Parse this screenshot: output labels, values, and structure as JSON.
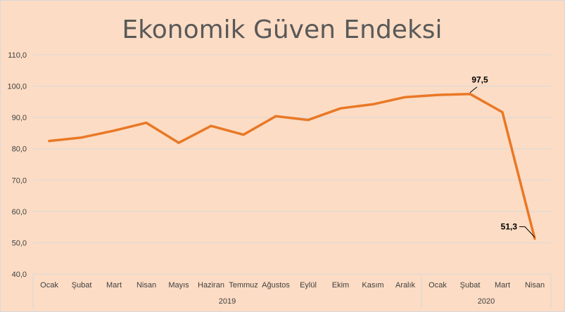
{
  "chart_data": {
    "type": "line",
    "title": "Ekonomik Güven Endeksi",
    "xlabel": "",
    "ylabel": "",
    "ylim": [
      40,
      110
    ],
    "yticks": [
      "40,0",
      "50,0",
      "60,0",
      "70,0",
      "80,0",
      "90,0",
      "100,0",
      "110,0"
    ],
    "grid": true,
    "line_color": "#e97826",
    "categories": [
      "Ocak",
      "Şubat",
      "Mart",
      "Nisan",
      "Mayıs",
      "Haziran",
      "Temmuz",
      "Ağustos",
      "Eylül",
      "Ekim",
      "Kasım",
      "Aralık",
      "Ocak",
      "Şubat",
      "Mart",
      "Nisan"
    ],
    "groups": [
      {
        "label": "2019",
        "count": 12
      },
      {
        "label": "2020",
        "count": 4
      }
    ],
    "series": [
      {
        "values": [
          82.5,
          83.6,
          85.8,
          88.3,
          81.9,
          87.3,
          84.5,
          90.4,
          89.2,
          92.9,
          94.2,
          96.5,
          97.2,
          97.5,
          91.7,
          51.3
        ]
      }
    ],
    "annotations": [
      {
        "index": 13,
        "text": "97,5"
      },
      {
        "index": 15,
        "text": "51,3"
      }
    ]
  }
}
